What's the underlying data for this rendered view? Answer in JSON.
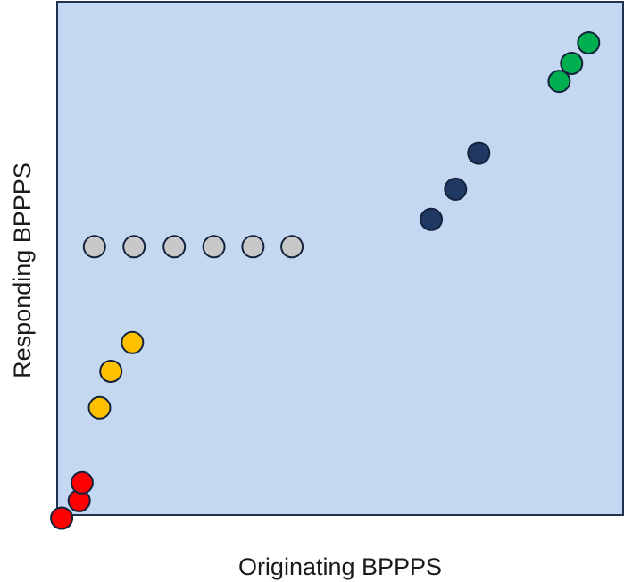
{
  "chart_data": {
    "type": "scatter",
    "title": "",
    "xlabel": "Originating BPPPS",
    "ylabel": "Responding BPPPS",
    "xlim": [
      0,
      100
    ],
    "ylim": [
      0,
      100
    ],
    "grid": false,
    "legend": "none",
    "colors": {
      "plot_background": "#c5d8f1",
      "frame": "#1f3350",
      "marker_outline": "#14233d"
    },
    "series": [
      {
        "color": "#ff0000",
        "x": [
          0.8,
          3.9,
          4.4
        ],
        "y": [
          -0.6,
          2.8,
          6.3
        ]
      },
      {
        "color": "#ffc000",
        "x": [
          7.5,
          9.5,
          13.3
        ],
        "y": [
          20.9,
          28.0,
          33.6
        ]
      },
      {
        "color": "#c8c8c8",
        "x": [
          6.6,
          13.6,
          20.7,
          27.7,
          34.6,
          41.5
        ],
        "y": [
          52.3,
          52.3,
          52.3,
          52.3,
          52.3,
          52.3
        ]
      },
      {
        "color": "#1f3864",
        "x": [
          66.1,
          70.4,
          74.5
        ],
        "y": [
          57.6,
          63.5,
          70.5
        ]
      },
      {
        "color": "#00b050",
        "x": [
          88.7,
          90.9,
          93.9
        ],
        "y": [
          84.5,
          88.0,
          92.0
        ]
      }
    ]
  }
}
